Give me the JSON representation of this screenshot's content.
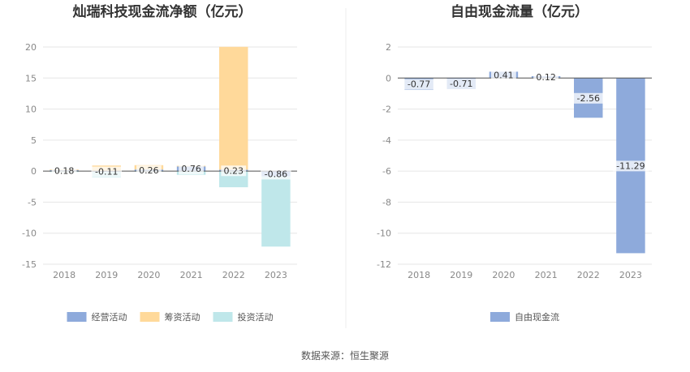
{
  "source": "数据来源：恒生聚源",
  "chart_data": [
    {
      "type": "bar",
      "title": "灿瑞科技现金流净额（亿元）",
      "categories": [
        "2018",
        "2019",
        "2020",
        "2021",
        "2022",
        "2023"
      ],
      "ylim": [
        -15,
        20
      ],
      "yticks": [
        20,
        15,
        10,
        5,
        0,
        -5,
        -10,
        -15
      ],
      "grid": true,
      "legend_position": "bottom",
      "series": [
        {
          "name": "经营活动",
          "color": "#8eaadb",
          "values": [
            0.18,
            -0.11,
            0.26,
            0.76,
            0.23,
            -0.86
          ]
        },
        {
          "name": "筹资活动",
          "color": "#ffd99a",
          "values": [
            0.1,
            0.9,
            0.7,
            0.1,
            19.8,
            0
          ]
        },
        {
          "name": "投资活动",
          "color": "#bfe7ea",
          "values": [
            -0.15,
            -0.9,
            -0.1,
            -0.6,
            -2.6,
            -11.3
          ]
        }
      ],
      "data_labels": [
        "0.18",
        "-0.11",
        "0.26",
        "0.76",
        "0.23",
        "-0.86"
      ]
    },
    {
      "type": "bar",
      "title": "自由现金流量（亿元）",
      "categories": [
        "2018",
        "2019",
        "2020",
        "2021",
        "2022",
        "2023"
      ],
      "ylim": [
        -12,
        2
      ],
      "yticks": [
        2,
        0,
        -2,
        -4,
        -6,
        -8,
        -10,
        -12
      ],
      "grid": true,
      "legend_position": "bottom",
      "series": [
        {
          "name": "自由现金流",
          "color": "#8eaadb",
          "values": [
            -0.77,
            -0.71,
            0.41,
            0.12,
            -2.56,
            -11.29
          ]
        }
      ],
      "data_labels": [
        "-0.77",
        "-0.71",
        "0.41",
        "0.12",
        "-2.56",
        "-11.29"
      ]
    }
  ]
}
